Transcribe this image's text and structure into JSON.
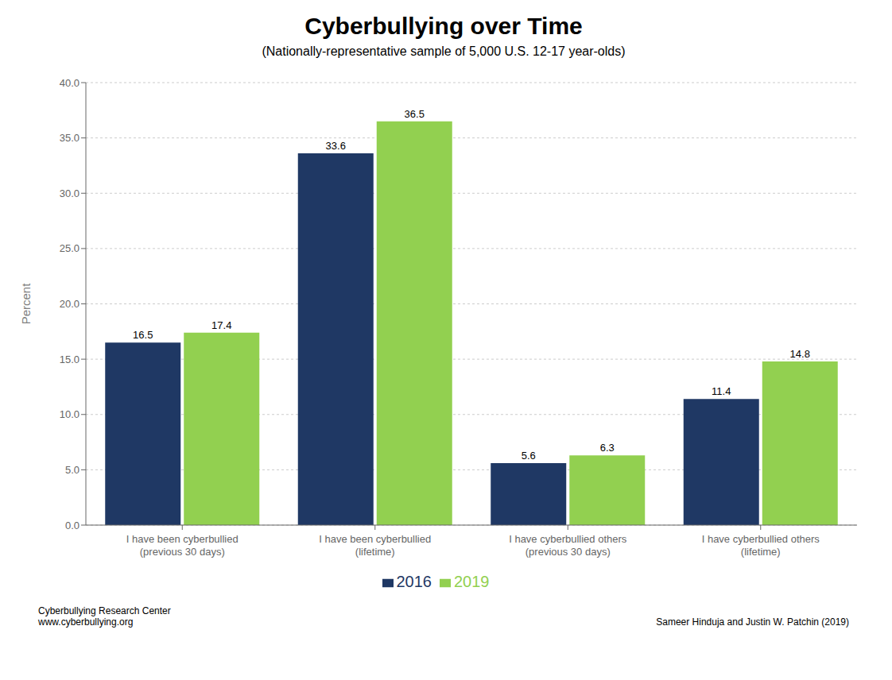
{
  "chart_data": {
    "type": "bar",
    "title": "Cyberbullying over Time",
    "subtitle": "(Nationally-representative sample of 5,000 U.S. 12-17 year-olds)",
    "ylabel": "Percent",
    "categories": [
      "I have been cyberbullied\n(previous 30 days)",
      "I have been cyberbullied\n(lifetime)",
      "I have cyberbullied others\n(previous 30 days)",
      "I have cyberbullied others\n(lifetime)"
    ],
    "series": [
      {
        "name": "2016",
        "color": "#1f3864",
        "values": [
          16.5,
          33.6,
          5.6,
          11.4
        ]
      },
      {
        "name": "2019",
        "color": "#92d050",
        "values": [
          17.4,
          36.5,
          6.3,
          14.8
        ]
      }
    ],
    "ylim": [
      0,
      40
    ],
    "yticks": [
      {
        "value": 0,
        "label": "0.0"
      },
      {
        "value": 5,
        "label": "5.0"
      },
      {
        "value": 10,
        "label": "10.0"
      },
      {
        "value": 15,
        "label": "15.0"
      },
      {
        "value": 20,
        "label": "20.0"
      },
      {
        "value": 25,
        "label": "25.0"
      },
      {
        "value": 30,
        "label": "30.0"
      },
      {
        "value": 35,
        "label": "35.0"
      },
      {
        "value": 40,
        "label": "40.0"
      }
    ],
    "grid": true,
    "legend": "bottom",
    "data_labels": true,
    "annotations": [
      "Cyberbullying Research Center\nwww.cyberbullying.org",
      "Sameer Hinduja and Justin W. Patchin (2019)"
    ]
  }
}
